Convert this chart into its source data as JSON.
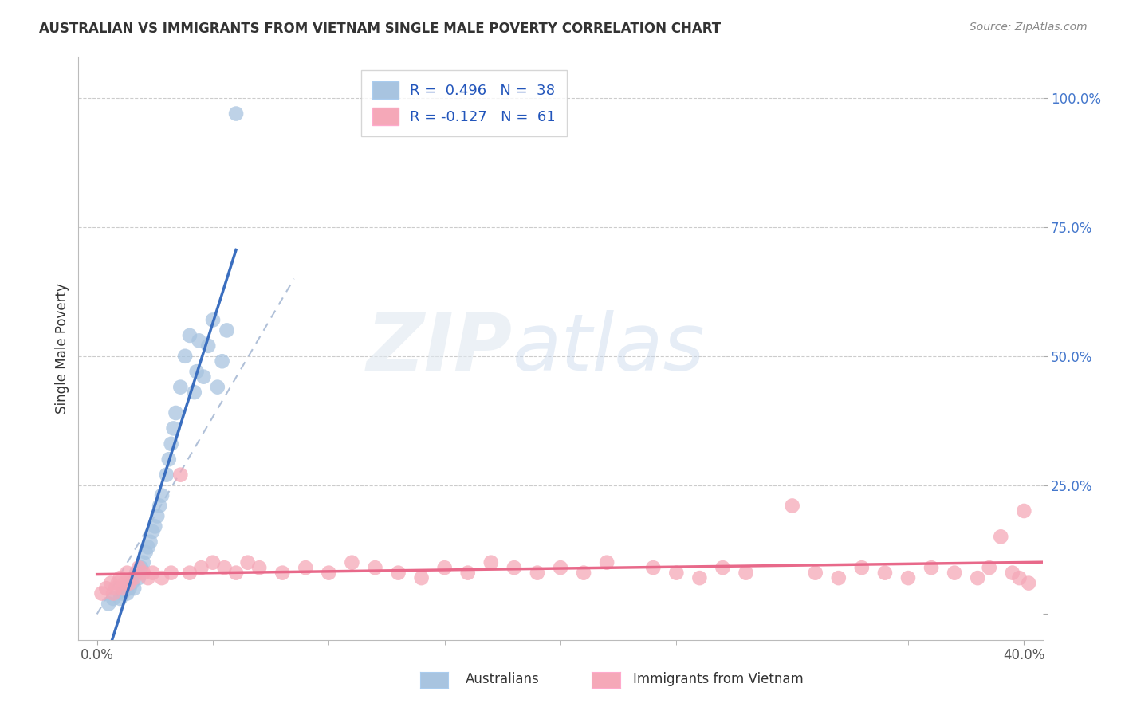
{
  "title": "AUSTRALIAN VS IMMIGRANTS FROM VIETNAM SINGLE MALE POVERTY CORRELATION CHART",
  "source": "Source: ZipAtlas.com",
  "ylabel": "Single Male Poverty",
  "blue_R": 0.496,
  "blue_N": 38,
  "pink_R": -0.127,
  "pink_N": 61,
  "blue_color": "#A8C4E0",
  "pink_color": "#F5A8B8",
  "blue_line_color": "#3A6EBF",
  "pink_line_color": "#E8698A",
  "dashed_line_color": "#B0C0D8",
  "legend_label_blue": "Australians",
  "legend_label_pink": "Immigrants from Vietnam",
  "blue_points_x": [
    0.005,
    0.007,
    0.01,
    0.011,
    0.013,
    0.014,
    0.015,
    0.016,
    0.017,
    0.018,
    0.019,
    0.02,
    0.021,
    0.022,
    0.023,
    0.024,
    0.025,
    0.026,
    0.027,
    0.028,
    0.03,
    0.031,
    0.032,
    0.033,
    0.034,
    0.036,
    0.038,
    0.04,
    0.042,
    0.043,
    0.044,
    0.046,
    0.048,
    0.05,
    0.052,
    0.054,
    0.056,
    0.06
  ],
  "blue_points_y": [
    0.02,
    0.03,
    0.03,
    0.04,
    0.04,
    0.05,
    0.06,
    0.05,
    0.08,
    0.07,
    0.09,
    0.1,
    0.12,
    0.13,
    0.14,
    0.16,
    0.17,
    0.19,
    0.21,
    0.23,
    0.27,
    0.3,
    0.33,
    0.36,
    0.39,
    0.44,
    0.5,
    0.54,
    0.43,
    0.47,
    0.53,
    0.46,
    0.52,
    0.57,
    0.44,
    0.49,
    0.55,
    0.97
  ],
  "pink_points_x": [
    0.002,
    0.004,
    0.006,
    0.007,
    0.008,
    0.009,
    0.01,
    0.011,
    0.012,
    0.013,
    0.014,
    0.016,
    0.018,
    0.02,
    0.022,
    0.024,
    0.028,
    0.032,
    0.036,
    0.04,
    0.045,
    0.05,
    0.055,
    0.06,
    0.065,
    0.07,
    0.08,
    0.09,
    0.1,
    0.11,
    0.12,
    0.13,
    0.14,
    0.15,
    0.16,
    0.17,
    0.18,
    0.19,
    0.2,
    0.21,
    0.22,
    0.24,
    0.25,
    0.26,
    0.27,
    0.28,
    0.3,
    0.31,
    0.32,
    0.33,
    0.34,
    0.35,
    0.36,
    0.37,
    0.38,
    0.385,
    0.39,
    0.395,
    0.398,
    0.4,
    0.402
  ],
  "pink_points_y": [
    0.04,
    0.05,
    0.06,
    0.04,
    0.05,
    0.06,
    0.07,
    0.05,
    0.06,
    0.08,
    0.06,
    0.07,
    0.09,
    0.08,
    0.07,
    0.08,
    0.07,
    0.08,
    0.27,
    0.08,
    0.09,
    0.1,
    0.09,
    0.08,
    0.1,
    0.09,
    0.08,
    0.09,
    0.08,
    0.1,
    0.09,
    0.08,
    0.07,
    0.09,
    0.08,
    0.1,
    0.09,
    0.08,
    0.09,
    0.08,
    0.1,
    0.09,
    0.08,
    0.07,
    0.09,
    0.08,
    0.21,
    0.08,
    0.07,
    0.09,
    0.08,
    0.07,
    0.09,
    0.08,
    0.07,
    0.09,
    0.15,
    0.08,
    0.07,
    0.2,
    0.06
  ]
}
